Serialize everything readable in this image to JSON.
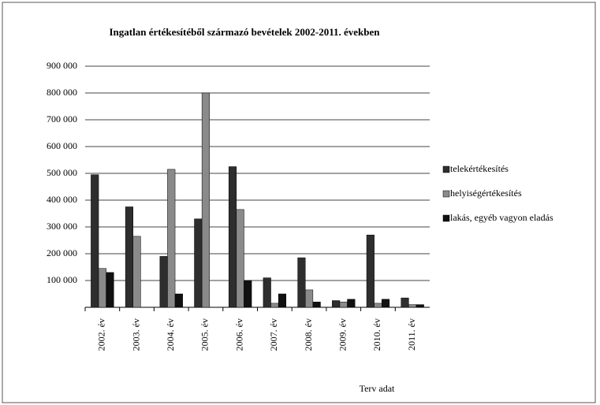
{
  "chart_data": {
    "type": "bar",
    "title": "Ingatlan értékesítéből származó bevételek 2002-2011. években",
    "x_label": "Terv adat",
    "categories": [
      "2002. év",
      "2003. év",
      "2004. év",
      "2005. év",
      "2006. év",
      "2007. év",
      "2008. év",
      "2009. év",
      "2010. év",
      "2011. év"
    ],
    "series": [
      {
        "name": "telekértékesítés",
        "color": "#2e2e2e",
        "values": [
          495000,
          375000,
          190000,
          330000,
          525000,
          110000,
          185000,
          25000,
          270000,
          35000
        ]
      },
      {
        "name": "helyiségértékesítés",
        "color": "#8a8a8a",
        "values": [
          145000,
          265000,
          515000,
          800000,
          365000,
          15000,
          65000,
          20000,
          15000,
          10000
        ]
      },
      {
        "name": "lakás, egyéb vagyon eladás",
        "color": "#111111",
        "values": [
          130000,
          0,
          50000,
          0,
          100000,
          50000,
          20000,
          30000,
          30000,
          10000
        ]
      }
    ],
    "ylim": [
      0,
      900000
    ],
    "yticks": [
      {
        "value": 100000,
        "label": "100 000"
      },
      {
        "value": 200000,
        "label": "200 000"
      },
      {
        "value": 300000,
        "label": "300 000"
      },
      {
        "value": 400000,
        "label": "400 000"
      },
      {
        "value": 500000,
        "label": "500 000"
      },
      {
        "value": 600000,
        "label": "600 000"
      },
      {
        "value": 700000,
        "label": "700 000"
      },
      {
        "value": 800000,
        "label": "800 000"
      },
      {
        "value": 900000,
        "label": "900 000"
      }
    ],
    "grid": true,
    "legend": "right"
  }
}
